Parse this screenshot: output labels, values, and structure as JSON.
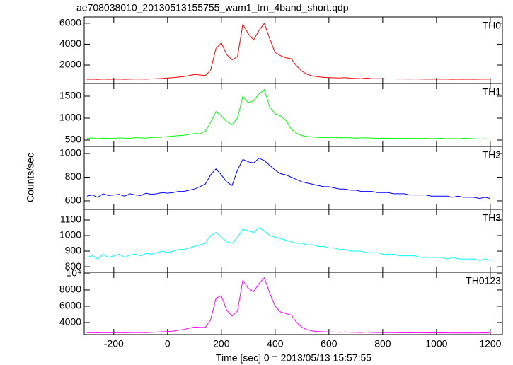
{
  "chart_data": [
    {
      "type": "line",
      "title": "ae708038010_20130513155755_wam1_trn_4band_short.qdp",
      "label": "TH0",
      "color": "#ff0000",
      "x": [
        -300,
        -280,
        -260,
        -240,
        -220,
        -200,
        -180,
        -160,
        -140,
        -120,
        -100,
        -80,
        -60,
        -40,
        -20,
        0,
        20,
        40,
        60,
        80,
        100,
        120,
        140,
        160,
        180,
        200,
        220,
        240,
        260,
        280,
        300,
        320,
        340,
        360,
        380,
        400,
        420,
        440,
        460,
        480,
        500,
        520,
        540,
        560,
        580,
        600,
        620,
        640,
        660,
        680,
        700,
        720,
        740,
        760,
        780,
        800,
        820,
        840,
        860,
        880,
        900,
        920,
        940,
        960,
        980,
        1000,
        1020,
        1040,
        1060,
        1080,
        1100,
        1120,
        1140,
        1160,
        1180,
        1200
      ],
      "values": [
        640,
        650,
        630,
        660,
        640,
        650,
        660,
        640,
        650,
        670,
        660,
        650,
        680,
        700,
        720,
        760,
        800,
        850,
        900,
        1000,
        1100,
        1050,
        1000,
        1500,
        3600,
        4100,
        3000,
        2500,
        2800,
        5900,
        5000,
        4400,
        5300,
        6000,
        4500,
        3200,
        2900,
        2700,
        2600,
        1900,
        1400,
        1100,
        950,
        880,
        820,
        800,
        780,
        760,
        800,
        740,
        720,
        700,
        760,
        700,
        690,
        690,
        680,
        680,
        670,
        670,
        660,
        680,
        660,
        650,
        660,
        650,
        660,
        650,
        640,
        650,
        640,
        650,
        640,
        650,
        660,
        650
      ],
      "xlim": [
        -310,
        1245
      ],
      "ylim": [
        240,
        6600
      ],
      "yticks": [
        2000,
        4000,
        6000
      ]
    },
    {
      "type": "line",
      "label": "TH1",
      "color": "#00ff00",
      "x": [
        -300,
        -280,
        -260,
        -240,
        -220,
        -200,
        -180,
        -160,
        -140,
        -120,
        -100,
        -80,
        -60,
        -40,
        -20,
        0,
        20,
        40,
        60,
        80,
        100,
        120,
        140,
        160,
        180,
        200,
        220,
        240,
        260,
        280,
        300,
        320,
        340,
        360,
        380,
        400,
        420,
        440,
        460,
        480,
        500,
        520,
        540,
        560,
        580,
        600,
        620,
        640,
        660,
        680,
        700,
        720,
        740,
        760,
        780,
        800,
        820,
        840,
        860,
        880,
        900,
        920,
        940,
        960,
        980,
        1000,
        1020,
        1040,
        1060,
        1080,
        1100,
        1120,
        1140,
        1160,
        1180,
        1200
      ],
      "values": [
        540,
        550,
        530,
        545,
        540,
        535,
        550,
        545,
        540,
        555,
        550,
        545,
        560,
        560,
        570,
        580,
        590,
        600,
        610,
        630,
        650,
        640,
        700,
        900,
        1150,
        1050,
        920,
        850,
        1000,
        1500,
        1350,
        1400,
        1550,
        1650,
        1250,
        1100,
        1050,
        950,
        750,
        650,
        600,
        580,
        570,
        560,
        555,
        560,
        560,
        550,
        555,
        550,
        545,
        550,
        550,
        545,
        540,
        545,
        540,
        540,
        535,
        540,
        535,
        540,
        535,
        540,
        530,
        535,
        540,
        530,
        535,
        530,
        540,
        535,
        530,
        525,
        530,
        520
      ],
      "xlim": [
        -310,
        1245
      ],
      "ylim": [
        355,
        1790
      ],
      "yticks": [
        500,
        1000,
        1500
      ]
    },
    {
      "type": "line",
      "label": "TH2",
      "y_label": "Counts/sec",
      "color": "#0000ff",
      "x": [
        -300,
        -280,
        -260,
        -240,
        -220,
        -200,
        -180,
        -160,
        -140,
        -120,
        -100,
        -80,
        -60,
        -40,
        -20,
        0,
        20,
        40,
        60,
        80,
        100,
        120,
        140,
        160,
        180,
        200,
        220,
        240,
        260,
        280,
        300,
        320,
        340,
        360,
        380,
        400,
        420,
        440,
        460,
        480,
        500,
        520,
        540,
        560,
        580,
        600,
        620,
        640,
        660,
        680,
        700,
        720,
        740,
        760,
        780,
        800,
        820,
        840,
        860,
        880,
        900,
        920,
        940,
        960,
        980,
        1000,
        1020,
        1040,
        1060,
        1080,
        1100,
        1120,
        1140,
        1160,
        1180,
        1200
      ],
      "values": [
        640,
        650,
        630,
        660,
        645,
        650,
        655,
        640,
        660,
        650,
        645,
        665,
        655,
        660,
        670,
        665,
        670,
        680,
        680,
        690,
        700,
        720,
        740,
        820,
        870,
        820,
        760,
        730,
        860,
        950,
        930,
        920,
        960,
        940,
        900,
        860,
        830,
        820,
        800,
        780,
        760,
        750,
        740,
        730,
        720,
        720,
        710,
        700,
        700,
        690,
        690,
        680,
        680,
        680,
        670,
        670,
        670,
        660,
        660,
        660,
        650,
        650,
        650,
        650,
        640,
        640,
        640,
        640,
        630,
        640,
        630,
        630,
        630,
        620,
        630,
        620
      ],
      "xlim": [
        -310,
        1245
      ],
      "ylim": [
        528,
        1060
      ],
      "yticks": [
        600,
        800,
        1000
      ]
    },
    {
      "type": "line",
      "label": "TH3",
      "color": "#00ffff",
      "x": [
        -300,
        -280,
        -260,
        -240,
        -220,
        -200,
        -180,
        -160,
        -140,
        -120,
        -100,
        -80,
        -60,
        -40,
        -20,
        0,
        20,
        40,
        60,
        80,
        100,
        120,
        140,
        160,
        180,
        200,
        220,
        240,
        260,
        280,
        300,
        320,
        340,
        360,
        380,
        400,
        420,
        440,
        460,
        480,
        500,
        520,
        540,
        560,
        580,
        600,
        620,
        640,
        660,
        680,
        700,
        720,
        740,
        760,
        780,
        800,
        820,
        840,
        860,
        880,
        900,
        920,
        940,
        960,
        980,
        1000,
        1020,
        1040,
        1060,
        1080,
        1100,
        1120,
        1140,
        1160,
        1180,
        1200
      ],
      "values": [
        860,
        870,
        850,
        880,
        860,
        870,
        880,
        860,
        875,
        880,
        870,
        885,
        880,
        890,
        900,
        890,
        900,
        910,
        910,
        920,
        930,
        940,
        950,
        1000,
        1020,
        990,
        960,
        950,
        990,
        1040,
        1030,
        1020,
        1050,
        1030,
        1000,
        990,
        980,
        970,
        960,
        950,
        950,
        940,
        940,
        930,
        930,
        920,
        920,
        910,
        910,
        900,
        900,
        900,
        890,
        890,
        890,
        880,
        880,
        880,
        870,
        870,
        870,
        870,
        860,
        860,
        860,
        860,
        860,
        850,
        860,
        850,
        850,
        850,
        850,
        840,
        850,
        840
      ],
      "xlim": [
        -310,
        1245
      ],
      "ylim": [
        764,
        1168
      ],
      "yticks": [
        800,
        900,
        1000,
        1100
      ]
    },
    {
      "type": "line",
      "label": "TH0123",
      "x_label": "Time [sec] 0 = 2013/05/13 15:57:55",
      "color": "#ff00ff",
      "x": [
        -300,
        -280,
        -260,
        -240,
        -220,
        -200,
        -180,
        -160,
        -140,
        -120,
        -100,
        -80,
        -60,
        -40,
        -20,
        0,
        20,
        40,
        60,
        80,
        100,
        120,
        140,
        160,
        180,
        200,
        220,
        240,
        260,
        280,
        300,
        320,
        340,
        360,
        380,
        400,
        420,
        440,
        460,
        480,
        500,
        520,
        540,
        560,
        580,
        600,
        620,
        640,
        660,
        680,
        700,
        720,
        740,
        760,
        780,
        800,
        820,
        840,
        860,
        880,
        900,
        920,
        940,
        960,
        980,
        1000,
        1020,
        1040,
        1060,
        1080,
        1100,
        1120,
        1140,
        1160,
        1180,
        1200
      ],
      "values": [
        2750,
        2760,
        2740,
        2770,
        2750,
        2760,
        2770,
        2750,
        2760,
        2780,
        2770,
        2760,
        2800,
        2830,
        2870,
        2900,
        2950,
        3050,
        3150,
        3300,
        3450,
        3400,
        3400,
        4300,
        7000,
        7300,
        5500,
        4800,
        5400,
        9200,
        8200,
        7800,
        8800,
        9500,
        7600,
        6000,
        5300,
        5100,
        4900,
        4000,
        3400,
        3100,
        2950,
        2900,
        2870,
        2850,
        2830,
        2810,
        2850,
        2800,
        2790,
        2780,
        2830,
        2780,
        2770,
        2770,
        2760,
        2760,
        2750,
        2750,
        2740,
        2760,
        2740,
        2730,
        2740,
        2730,
        2740,
        2730,
        2720,
        2730,
        2720,
        2730,
        2720,
        2730,
        2740,
        2720
      ],
      "xlim": [
        -310,
        1245
      ],
      "ylim": [
        2520,
        10170
      ],
      "yticks": [
        4000,
        6000,
        8000,
        {
          "value": 10000,
          "label": "10⁴"
        }
      ],
      "xticks": [
        -200,
        0,
        200,
        400,
        600,
        800,
        1000,
        1200
      ]
    }
  ]
}
